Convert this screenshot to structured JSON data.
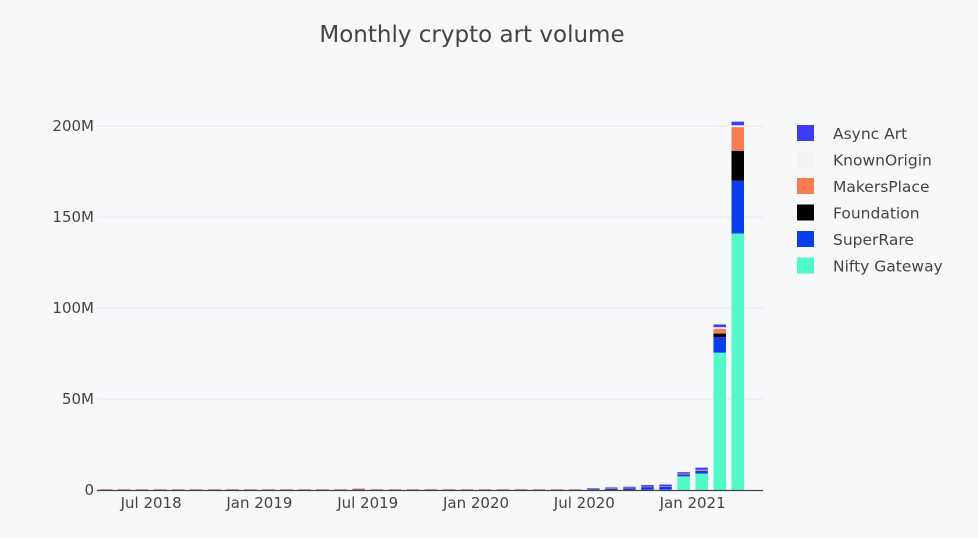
{
  "chart_data": {
    "type": "bar",
    "stacked": true,
    "title": "Monthly crypto art volume",
    "xlabel": "",
    "ylabel": "",
    "ylim": [
      0,
      210000000
    ],
    "y_ticks": [
      {
        "value": 0,
        "label": "0"
      },
      {
        "value": 50000000,
        "label": "50M"
      },
      {
        "value": 100000000,
        "label": "100M"
      },
      {
        "value": 150000000,
        "label": "150M"
      },
      {
        "value": 200000000,
        "label": "200M"
      }
    ],
    "x_ticks": [
      {
        "value": "2018-07",
        "label": "Jul 2018"
      },
      {
        "value": "2019-01",
        "label": "Jan 2019"
      },
      {
        "value": "2019-07",
        "label": "Jul 2019"
      },
      {
        "value": "2020-01",
        "label": "Jan 2020"
      },
      {
        "value": "2020-07",
        "label": "Jul 2020"
      },
      {
        "value": "2021-01",
        "label": "Jan 2021"
      }
    ],
    "grid": true,
    "legend_position": "right",
    "categories": [
      "2018-04",
      "2018-05",
      "2018-06",
      "2018-07",
      "2018-08",
      "2018-09",
      "2018-10",
      "2018-11",
      "2018-12",
      "2019-01",
      "2019-02",
      "2019-03",
      "2019-04",
      "2019-05",
      "2019-06",
      "2019-07",
      "2019-08",
      "2019-09",
      "2019-10",
      "2019-11",
      "2019-12",
      "2020-01",
      "2020-02",
      "2020-03",
      "2020-04",
      "2020-05",
      "2020-06",
      "2020-07",
      "2020-08",
      "2020-09",
      "2020-10",
      "2020-11",
      "2020-12",
      "2021-01",
      "2021-02",
      "2021-03"
    ],
    "series": [
      {
        "name": "Nifty Gateway",
        "color": "#50fac8",
        "values": [
          0,
          0,
          0,
          0,
          0,
          0,
          0,
          0,
          0,
          0,
          0,
          0,
          0,
          0,
          0,
          0,
          0,
          0,
          0,
          0,
          0,
          0,
          0,
          0,
          0,
          0,
          0,
          0,
          0,
          0,
          0.1,
          0.2,
          7.5,
          9,
          75.5,
          141
        ]
      },
      {
        "name": "SuperRare",
        "color": "#0a3cf0",
        "values": [
          0.3,
          0.3,
          0.3,
          0.3,
          0.3,
          0.3,
          0.3,
          0.3,
          0.3,
          0.3,
          0.3,
          0.3,
          0.3,
          0.3,
          0.3,
          0.3,
          0.3,
          0.3,
          0.3,
          0.3,
          0.3,
          0.3,
          0.3,
          0.3,
          0.3,
          0.3,
          0.3,
          0.5,
          0.8,
          1,
          1.5,
          1.5,
          1,
          1.5,
          8.5,
          29
        ]
      },
      {
        "name": "Foundation",
        "color": "#000000",
        "values": [
          0,
          0,
          0,
          0,
          0,
          0,
          0,
          0,
          0,
          0,
          0,
          0,
          0,
          0,
          0,
          0,
          0,
          0,
          0,
          0,
          0,
          0,
          0,
          0,
          0,
          0,
          0,
          0,
          0,
          0,
          0,
          0,
          0,
          0,
          2,
          16.5
        ]
      },
      {
        "name": "MakersPlace",
        "color": "#fa7d50",
        "values": [
          0.1,
          0.1,
          0.1,
          0.1,
          0.1,
          0.1,
          0.1,
          0.1,
          0.1,
          0.1,
          0.1,
          0.1,
          0.1,
          0.1,
          0.5,
          0.1,
          0.1,
          0.1,
          0.1,
          0.1,
          0.1,
          0.1,
          0.1,
          0.1,
          0.1,
          0.1,
          0.1,
          0.2,
          0.2,
          0.3,
          0.3,
          0.3,
          0.5,
          0.6,
          2.5,
          13
        ]
      },
      {
        "name": "KnownOrigin",
        "color": "#f2f2f2",
        "values": [
          0,
          0,
          0,
          0,
          0,
          0,
          0,
          0,
          0,
          0,
          0,
          0,
          0,
          0,
          0,
          0,
          0,
          0,
          0,
          0,
          0,
          0,
          0,
          0,
          0,
          0,
          0,
          0,
          0,
          0,
          0,
          0,
          0,
          0,
          1,
          1
        ]
      },
      {
        "name": "Async Art",
        "color": "#3c3cfa",
        "values": [
          0,
          0,
          0,
          0,
          0,
          0,
          0,
          0,
          0,
          0,
          0,
          0,
          0,
          0,
          0,
          0,
          0,
          0,
          0,
          0,
          0,
          0,
          0,
          0,
          0,
          0,
          0,
          0.3,
          0.4,
          0.5,
          0.8,
          1,
          0.8,
          1.2,
          1.5,
          2
        ]
      }
    ],
    "value_unit_multiplier": 1000000,
    "legend_order": [
      "Async Art",
      "KnownOrigin",
      "MakersPlace",
      "Foundation",
      "SuperRare",
      "Nifty Gateway"
    ]
  },
  "colors": {
    "background": "#f7f8fa",
    "grid": "#e5e7ec",
    "axis": "#444444",
    "text": "#444444"
  }
}
